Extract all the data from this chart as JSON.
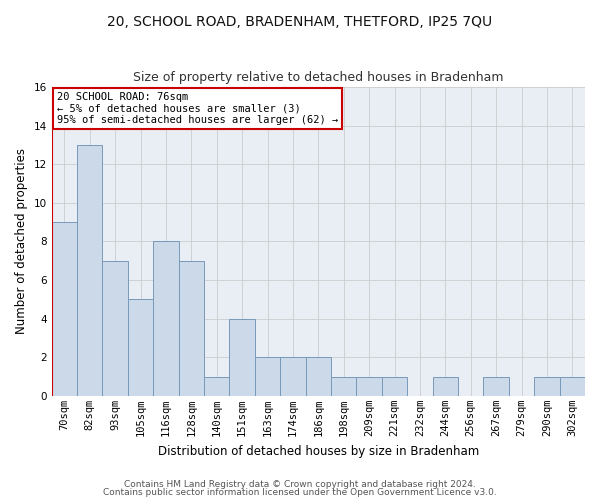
{
  "title": "20, SCHOOL ROAD, BRADENHAM, THETFORD, IP25 7QU",
  "subtitle": "Size of property relative to detached houses in Bradenham",
  "xlabel": "Distribution of detached houses by size in Bradenham",
  "ylabel": "Number of detached properties",
  "categories": [
    "70sqm",
    "82sqm",
    "93sqm",
    "105sqm",
    "116sqm",
    "128sqm",
    "140sqm",
    "151sqm",
    "163sqm",
    "174sqm",
    "186sqm",
    "198sqm",
    "209sqm",
    "221sqm",
    "232sqm",
    "244sqm",
    "256sqm",
    "267sqm",
    "279sqm",
    "290sqm",
    "302sqm"
  ],
  "values": [
    9,
    13,
    7,
    5,
    8,
    7,
    1,
    4,
    2,
    2,
    2,
    1,
    1,
    1,
    0,
    1,
    0,
    1,
    0,
    1,
    1
  ],
  "bar_color": "#ccd9e8",
  "bar_edge_color": "#7799bb",
  "bar_width": 1.0,
  "ylim": [
    0,
    16
  ],
  "yticks": [
    0,
    2,
    4,
    6,
    8,
    10,
    12,
    14,
    16
  ],
  "annotation_text": "20 SCHOOL ROAD: 76sqm\n← 5% of detached houses are smaller (3)\n95% of semi-detached houses are larger (62) →",
  "annotation_box_color": "#ffffff",
  "annotation_box_edge": "#cc0000",
  "vline_color": "#cc0000",
  "grid_color": "#cccccc",
  "background_color": "#e8eef4",
  "footer1": "Contains HM Land Registry data © Crown copyright and database right 2024.",
  "footer2": "Contains public sector information licensed under the Open Government Licence v3.0.",
  "title_fontsize": 10,
  "subtitle_fontsize": 9,
  "xlabel_fontsize": 8.5,
  "ylabel_fontsize": 8.5,
  "tick_fontsize": 7.5,
  "annotation_fontsize": 7.5,
  "footer_fontsize": 6.5
}
